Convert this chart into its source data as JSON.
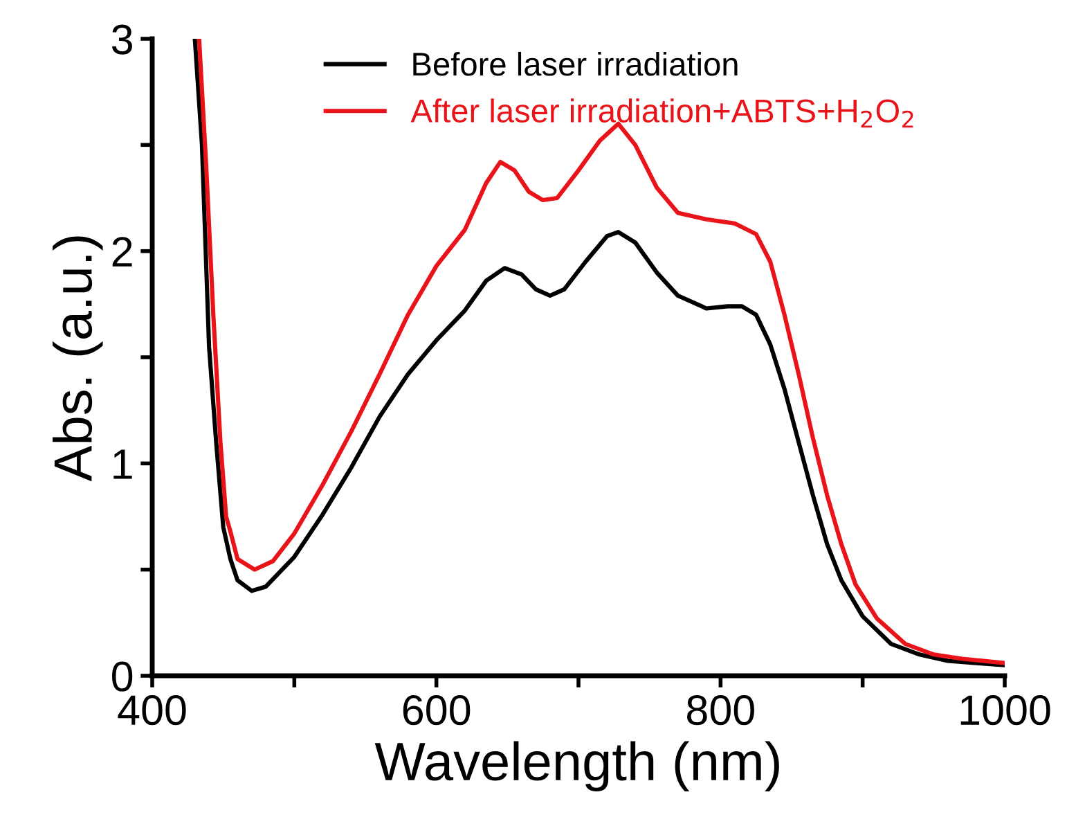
{
  "chart_data": {
    "type": "line",
    "xlabel": "Wavelength (nm)",
    "ylabel": "Abs. (a.u.)",
    "xlim": [
      400,
      1000
    ],
    "ylim": [
      0,
      3
    ],
    "xticks": [
      400,
      {
        "value": 500,
        "label": null
      },
      600,
      {
        "value": 700,
        "label": null
      },
      800,
      {
        "value": 900,
        "label": null
      },
      1000
    ],
    "yticks": [
      0,
      {
        "value": 0.5,
        "label": null
      },
      1,
      {
        "value": 1.5,
        "label": null
      },
      2,
      {
        "value": 2.5,
        "label": null
      },
      3
    ],
    "legend": "top",
    "grid": false,
    "line_style": "solid",
    "series": [
      {
        "name": "Before laser irradiation",
        "color": "#000000",
        "x": [
          430,
          435,
          440,
          445,
          450,
          455,
          460,
          470,
          480,
          500,
          520,
          540,
          560,
          580,
          600,
          620,
          635,
          648,
          660,
          670,
          680,
          690,
          705,
          720,
          728,
          740,
          755,
          770,
          790,
          805,
          815,
          825,
          835,
          845,
          855,
          865,
          875,
          885,
          900,
          920,
          940,
          960,
          980,
          1000
        ],
        "values": [
          3.0,
          2.5,
          1.55,
          1.1,
          0.7,
          0.55,
          0.45,
          0.4,
          0.42,
          0.56,
          0.76,
          0.98,
          1.22,
          1.42,
          1.58,
          1.72,
          1.86,
          1.92,
          1.89,
          1.82,
          1.79,
          1.82,
          1.95,
          2.07,
          2.09,
          2.04,
          1.9,
          1.79,
          1.73,
          1.74,
          1.74,
          1.7,
          1.56,
          1.35,
          1.1,
          0.85,
          0.62,
          0.45,
          0.28,
          0.15,
          0.1,
          0.07,
          0.06,
          0.05
        ]
      },
      {
        "name": "After laser irradiation+ABTS+H$_{2}$O$_{2}$",
        "color": "#e8141a",
        "x": [
          433,
          438,
          443,
          448,
          452,
          455,
          460,
          472,
          485,
          500,
          520,
          540,
          560,
          580,
          600,
          620,
          635,
          645,
          655,
          665,
          675,
          685,
          700,
          715,
          728,
          740,
          755,
          770,
          790,
          810,
          825,
          835,
          845,
          855,
          865,
          875,
          885,
          895,
          910,
          930,
          950,
          970,
          1000
        ],
        "values": [
          3.0,
          2.4,
          1.7,
          1.1,
          0.75,
          0.68,
          0.55,
          0.5,
          0.54,
          0.67,
          0.9,
          1.15,
          1.42,
          1.7,
          1.93,
          2.1,
          2.32,
          2.42,
          2.38,
          2.28,
          2.24,
          2.25,
          2.38,
          2.52,
          2.6,
          2.5,
          2.3,
          2.18,
          2.15,
          2.13,
          2.08,
          1.95,
          1.7,
          1.42,
          1.12,
          0.85,
          0.62,
          0.43,
          0.27,
          0.15,
          0.1,
          0.08,
          0.06
        ]
      }
    ]
  }
}
